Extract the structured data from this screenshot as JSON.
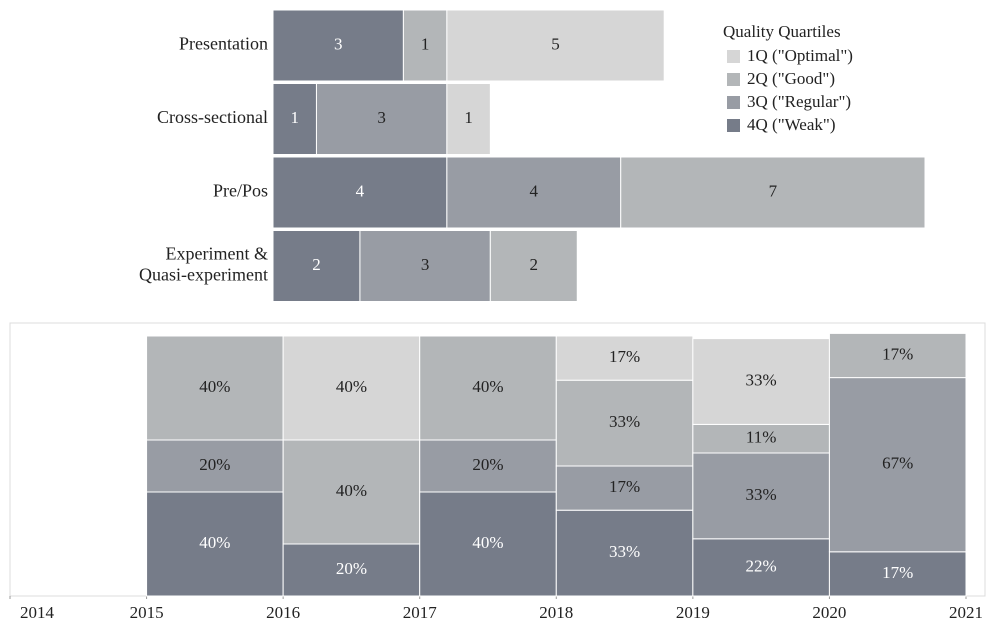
{
  "chart_data": [
    {
      "type": "hbar_stacked",
      "legend_title": "Quality Quartiles",
      "legend": "top-right",
      "categories": [
        "Presentation",
        "Cross-sectional",
        "Pre/Pos",
        "Experiment &\nQuasi-experiment"
      ],
      "series": [
        {
          "name": "1Q (\"Optimal\")",
          "color": "#d6d6d6",
          "values": [
            5,
            1,
            null,
            null
          ]
        },
        {
          "name": "2Q (\"Good\")",
          "color": "#b3b6b8",
          "values": [
            1,
            null,
            7,
            2
          ]
        },
        {
          "name": "3Q (\"Regular\")",
          "color": "#989ca4",
          "values": [
            null,
            3,
            4,
            3
          ]
        },
        {
          "name": "4Q (\"Weak\")",
          "color": "#767c89",
          "values": [
            3,
            1,
            4,
            2
          ]
        }
      ]
    },
    {
      "type": "mekko",
      "x": [
        2015,
        2016,
        2017,
        2018,
        2019,
        2020
      ],
      "xlim": [
        2014,
        2021
      ],
      "xticks": [
        2014,
        2015,
        2016,
        2017,
        2018,
        2019,
        2020,
        2021
      ],
      "ylim": [
        0,
        100
      ],
      "series": [
        {
          "color": "#d6d6d6",
          "values": [
            null,
            40,
            null,
            17,
            33,
            null
          ],
          "value_labels": [
            null,
            "40%",
            null,
            "17%",
            "33%",
            null
          ]
        },
        {
          "color": "#b3b6b8",
          "values": [
            40,
            40,
            40,
            33,
            11,
            17
          ],
          "value_labels": [
            "40%",
            "40%",
            "40%",
            "33%",
            "11%",
            "17%"
          ]
        },
        {
          "color": "#989ca4",
          "values": [
            20,
            null,
            20,
            17,
            33,
            67
          ],
          "value_labels": [
            "20%",
            null,
            "20%",
            "17%",
            "33%",
            "67%"
          ]
        },
        {
          "color": "#767c89",
          "values": [
            40,
            20,
            40,
            33,
            22,
            17
          ],
          "value_labels": [
            "40%",
            "20%",
            "40%",
            "33%",
            "22%",
            "17%"
          ]
        }
      ]
    }
  ]
}
